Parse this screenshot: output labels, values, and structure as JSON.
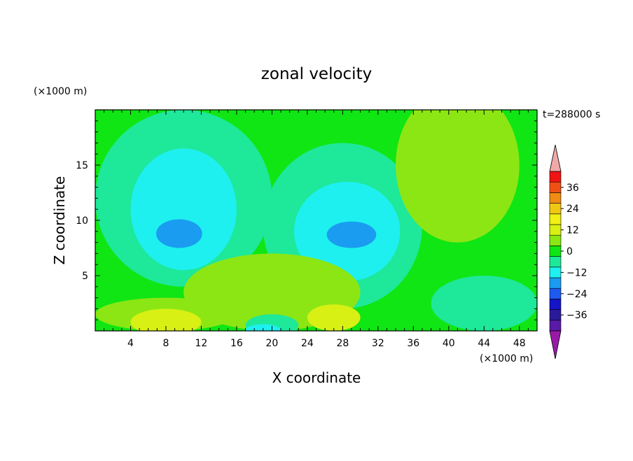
{
  "chart_data": {
    "type": "heatmap",
    "title": "zonal velocity",
    "xlabel": "X coordinate",
    "ylabel": "Z coordinate",
    "x_unit": "(×1000 m)",
    "y_unit": "(×1000 m)",
    "time_label": "t=288000 s",
    "xlim": [
      0,
      50
    ],
    "ylim": [
      0,
      20
    ],
    "x_ticks": [
      4,
      8,
      12,
      16,
      20,
      24,
      28,
      32,
      36,
      40,
      44,
      48
    ],
    "y_ticks": [
      5,
      10,
      15
    ],
    "x_tick_labels": [
      "4",
      "8",
      "12",
      "16",
      "20",
      "24",
      "28",
      "32",
      "36",
      "40",
      "44",
      "48"
    ],
    "y_tick_labels": [
      "5",
      "10",
      "15"
    ],
    "colorbar": {
      "levels": [
        -42,
        -36,
        -30,
        -24,
        -18,
        -12,
        -6,
        0,
        6,
        12,
        18,
        24,
        30,
        36,
        42
      ],
      "tick_values": [
        -36,
        -24,
        -12,
        0,
        12,
        24,
        36
      ],
      "tick_labels": [
        "−36",
        "−24",
        "−12",
        "0",
        "12",
        "24",
        "36"
      ],
      "colors": [
        "#5a1aa8",
        "#2a1a9a",
        "#1414c8",
        "#1e5af0",
        "#1a9cf0",
        "#1ef0f0",
        "#1ee89a",
        "#10e614",
        "#8ce614",
        "#d8f014",
        "#f0f014",
        "#f0c814",
        "#f08c14",
        "#f05014",
        "#f01414"
      ],
      "under_color": "#9a1aa8",
      "over_color": "#f0a8a8"
    },
    "regions": [
      {
        "level": 0,
        "cx": 1,
        "cy": 18,
        "rx": 2,
        "ry": 4
      },
      {
        "level": -6,
        "cx": 10,
        "cy": 12,
        "rx": 10,
        "ry": 8
      },
      {
        "level": -12,
        "cx": 10,
        "cy": 11,
        "rx": 6,
        "ry": 5.5
      },
      {
        "level": -18,
        "cx": 9.5,
        "cy": 8.8,
        "rx": 2.6,
        "ry": 1.3
      },
      {
        "level": -6,
        "cx": 28,
        "cy": 9.5,
        "rx": 9,
        "ry": 7.5
      },
      {
        "level": -12,
        "cx": 28.5,
        "cy": 9,
        "rx": 6,
        "ry": 4.5
      },
      {
        "level": -18,
        "cx": 29,
        "cy": 8.7,
        "rx": 2.8,
        "ry": 1.2
      },
      {
        "level": 6,
        "cx": 41,
        "cy": 15,
        "rx": 7,
        "ry": 7
      },
      {
        "level": 6,
        "cx": 20,
        "cy": 3.5,
        "rx": 10,
        "ry": 3.5
      },
      {
        "level": 6,
        "cx": 8,
        "cy": 1.5,
        "rx": 8,
        "ry": 1.5
      },
      {
        "level": 12,
        "cx": 8,
        "cy": 0.8,
        "rx": 4,
        "ry": 1.2
      },
      {
        "level": 12,
        "cx": 27,
        "cy": 1.2,
        "rx": 3,
        "ry": 1.2
      },
      {
        "level": -6,
        "cx": 20,
        "cy": 0.5,
        "rx": 3,
        "ry": 1
      },
      {
        "level": -12,
        "cx": 19,
        "cy": 0.1,
        "rx": 2,
        "ry": 0.5
      },
      {
        "level": -6,
        "cx": 44,
        "cy": 2.5,
        "rx": 6,
        "ry": 2.5
      }
    ]
  }
}
